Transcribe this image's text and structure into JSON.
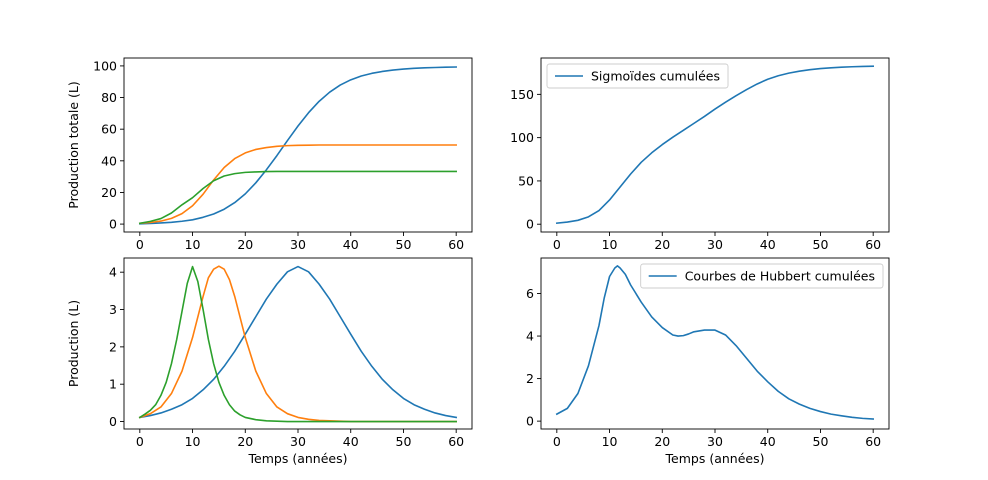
{
  "chart_data": [
    {
      "type": "line",
      "title": "",
      "xlabel": "",
      "ylabel": "Production totale (L)",
      "xlim": [
        -3,
        63
      ],
      "ylim": [
        -5,
        105
      ],
      "xticks": [
        0,
        10,
        20,
        30,
        40,
        50,
        60
      ],
      "yticks": [
        0,
        20,
        40,
        60,
        80,
        100
      ],
      "grid": false,
      "legend": null,
      "series": [
        {
          "color": "#1f77b4",
          "x": [
            0,
            2,
            4,
            6,
            8,
            10,
            12,
            14,
            16,
            18,
            20,
            22,
            24,
            26,
            28,
            30,
            32,
            34,
            36,
            38,
            40,
            42,
            44,
            46,
            48,
            50,
            52,
            54,
            56,
            58,
            60
          ],
          "values": [
            0.2,
            0.4,
            0.7,
            1.1,
            1.8,
            2.7,
            4.3,
            6.4,
            9.4,
            13.6,
            19.1,
            26.1,
            34.3,
            43.3,
            52.8,
            62.0,
            70.4,
            77.6,
            83.4,
            87.9,
            91.2,
            93.6,
            95.3,
            96.5,
            97.4,
            98.0,
            98.5,
            98.8,
            99.0,
            99.2,
            99.3
          ]
        },
        {
          "color": "#ff7f0e",
          "x": [
            0,
            2,
            4,
            6,
            8,
            10,
            12,
            14,
            16,
            18,
            20,
            22,
            24,
            26,
            28,
            30,
            32,
            34,
            36,
            38,
            40,
            42,
            44,
            46,
            48,
            50,
            52,
            54,
            56,
            58,
            60
          ],
          "values": [
            0.5,
            1.0,
            1.9,
            3.6,
            6.6,
            11.6,
            18.9,
            27.9,
            35.8,
            41.4,
            45.0,
            47.2,
            48.4,
            49.2,
            49.6,
            49.8,
            49.9,
            50.0,
            50.0,
            50.0,
            50.0,
            50.0,
            50.0,
            50.0,
            50.0,
            50.0,
            50.0,
            50.0,
            50.0,
            50.0,
            50.0
          ]
        },
        {
          "color": "#2ca02c",
          "x": [
            0,
            2,
            4,
            6,
            8,
            10,
            12,
            14,
            16,
            18,
            20,
            22,
            24,
            26,
            28,
            30,
            32,
            34,
            36,
            38,
            40,
            42,
            44,
            46,
            48,
            50,
            52,
            54,
            56,
            58,
            60
          ],
          "values": [
            0.5,
            1.7,
            3.5,
            7.0,
            12.2,
            16.7,
            22.5,
            27.4,
            30.4,
            31.9,
            32.7,
            33.0,
            33.2,
            33.3,
            33.3,
            33.3,
            33.3,
            33.3,
            33.3,
            33.3,
            33.3,
            33.3,
            33.3,
            33.3,
            33.3,
            33.3,
            33.3,
            33.3,
            33.3,
            33.3,
            33.3
          ]
        }
      ]
    },
    {
      "type": "line",
      "title": "",
      "xlabel": "",
      "ylabel": "",
      "xlim": [
        -3,
        63
      ],
      "ylim": [
        -9,
        192
      ],
      "xticks": [
        0,
        10,
        20,
        30,
        40,
        50,
        60
      ],
      "yticks": [
        0,
        50,
        100,
        150
      ],
      "grid": false,
      "legend": {
        "position": "upper-left",
        "entries": [
          {
            "label": "Sigmoïdes cumulées",
            "color": "#1f77b4"
          }
        ]
      },
      "series": [
        {
          "name": "Sigmoïdes cumulées",
          "color": "#1f77b4",
          "x": [
            0,
            2,
            4,
            6,
            8,
            10,
            12,
            14,
            16,
            18,
            20,
            22,
            24,
            26,
            28,
            30,
            32,
            34,
            36,
            38,
            40,
            42,
            44,
            46,
            48,
            50,
            52,
            54,
            56,
            58,
            60
          ],
          "values": [
            1.2,
            2.5,
            4.5,
            8.5,
            15.8,
            28.0,
            43.0,
            58.0,
            71.5,
            82.5,
            92.0,
            100.5,
            108.5,
            116.5,
            124.5,
            133.0,
            141.0,
            148.5,
            155.5,
            162.0,
            167.5,
            171.5,
            174.5,
            176.8,
            178.5,
            179.8,
            180.7,
            181.4,
            181.9,
            182.3,
            182.5
          ]
        }
      ]
    },
    {
      "type": "line",
      "title": "",
      "xlabel": "Temps (années)",
      "ylabel": "Production (L)",
      "xlim": [
        -3,
        63
      ],
      "ylim": [
        -0.2,
        4.38
      ],
      "xticks": [
        0,
        10,
        20,
        30,
        40,
        50,
        60
      ],
      "yticks": [
        0,
        1,
        2,
        3,
        4
      ],
      "grid": false,
      "legend": null,
      "series": [
        {
          "color": "#1f77b4",
          "x": [
            0,
            2,
            4,
            6,
            8,
            10,
            12,
            14,
            16,
            18,
            20,
            22,
            24,
            26,
            28,
            30,
            32,
            34,
            36,
            38,
            40,
            42,
            44,
            46,
            48,
            50,
            52,
            54,
            56,
            58,
            60
          ],
          "values": [
            0.11,
            0.16,
            0.23,
            0.33,
            0.45,
            0.62,
            0.85,
            1.13,
            1.48,
            1.88,
            2.34,
            2.81,
            3.28,
            3.68,
            4.01,
            4.15,
            4.01,
            3.68,
            3.28,
            2.81,
            2.34,
            1.88,
            1.48,
            1.13,
            0.85,
            0.62,
            0.45,
            0.33,
            0.23,
            0.16,
            0.11
          ]
        },
        {
          "color": "#ff7f0e",
          "x": [
            0,
            2,
            4,
            6,
            8,
            10,
            12,
            13,
            14,
            15,
            16,
            17,
            18,
            20,
            22,
            24,
            26,
            28,
            30,
            32,
            34,
            36,
            38,
            40,
            45,
            50,
            55,
            60
          ],
          "values": [
            0.11,
            0.21,
            0.39,
            0.75,
            1.35,
            2.25,
            3.35,
            3.85,
            4.08,
            4.16,
            4.08,
            3.8,
            3.35,
            2.25,
            1.35,
            0.75,
            0.39,
            0.21,
            0.11,
            0.06,
            0.03,
            0.02,
            0.01,
            0.0,
            0.0,
            0.0,
            0.0,
            0.0
          ]
        },
        {
          "color": "#2ca02c",
          "x": [
            0,
            1,
            2,
            3,
            4,
            5,
            6,
            7,
            8,
            9,
            10,
            11,
            12,
            13,
            14,
            15,
            16,
            17,
            18,
            19,
            20,
            22,
            24,
            26,
            28,
            30,
            35,
            40,
            50,
            60
          ],
          "values": [
            0.11,
            0.2,
            0.3,
            0.45,
            0.7,
            1.05,
            1.55,
            2.2,
            2.95,
            3.7,
            4.15,
            3.75,
            3.0,
            2.2,
            1.55,
            1.05,
            0.7,
            0.45,
            0.28,
            0.18,
            0.11,
            0.05,
            0.02,
            0.01,
            0.0,
            0.0,
            0.0,
            0.0,
            0.0,
            0.0
          ]
        }
      ]
    },
    {
      "type": "line",
      "title": "",
      "xlabel": "Temps (années)",
      "ylabel": "",
      "xlim": [
        -3,
        63
      ],
      "ylim": [
        -0.37,
        7.67
      ],
      "xticks": [
        0,
        10,
        20,
        30,
        40,
        50,
        60
      ],
      "yticks": [
        0,
        2,
        4,
        6
      ],
      "grid": false,
      "legend": {
        "position": "upper-right",
        "entries": [
          {
            "label": "Courbes de Hubbert cumulées",
            "color": "#1f77b4"
          }
        ]
      },
      "series": [
        {
          "name": "Courbes de Hubbert cumulées",
          "color": "#1f77b4",
          "x": [
            0,
            2,
            4,
            6,
            8,
            9,
            10,
            11,
            11.5,
            12,
            13,
            14,
            16,
            18,
            20,
            22,
            23,
            24,
            25,
            26,
            28,
            30,
            32,
            34,
            36,
            38,
            40,
            42,
            44,
            46,
            48,
            50,
            52,
            54,
            56,
            58,
            60
          ],
          "values": [
            0.33,
            0.6,
            1.3,
            2.6,
            4.5,
            5.8,
            6.8,
            7.2,
            7.3,
            7.2,
            6.9,
            6.4,
            5.6,
            4.9,
            4.4,
            4.05,
            4.0,
            4.02,
            4.1,
            4.2,
            4.28,
            4.28,
            4.05,
            3.55,
            2.95,
            2.35,
            1.85,
            1.4,
            1.05,
            0.8,
            0.6,
            0.45,
            0.33,
            0.25,
            0.18,
            0.13,
            0.1
          ]
        }
      ]
    }
  ]
}
